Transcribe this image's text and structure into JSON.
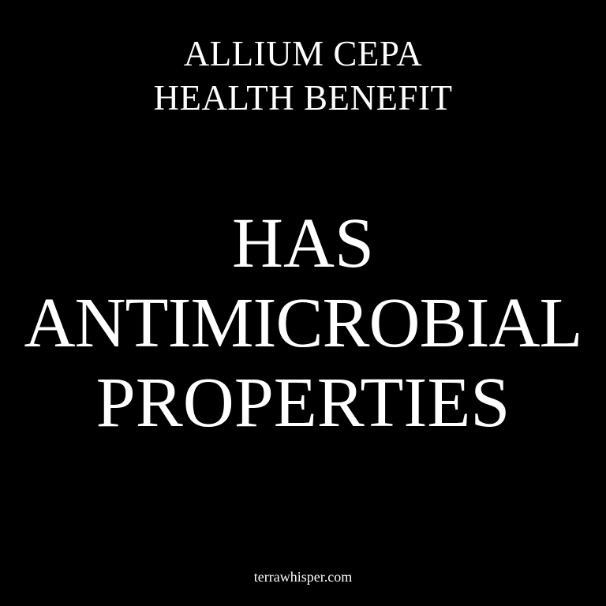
{
  "subtitle": {
    "line1": "ALLIUM CEPA",
    "line2": "HEALTH BENEFIT"
  },
  "headline": {
    "line1": "HAS",
    "line2": "ANTIMICROBIAL",
    "line3": "PROPERTIES"
  },
  "footer": {
    "site": "terrawhisper.com"
  },
  "colors": {
    "background": "#000000",
    "text": "#ffffff"
  }
}
